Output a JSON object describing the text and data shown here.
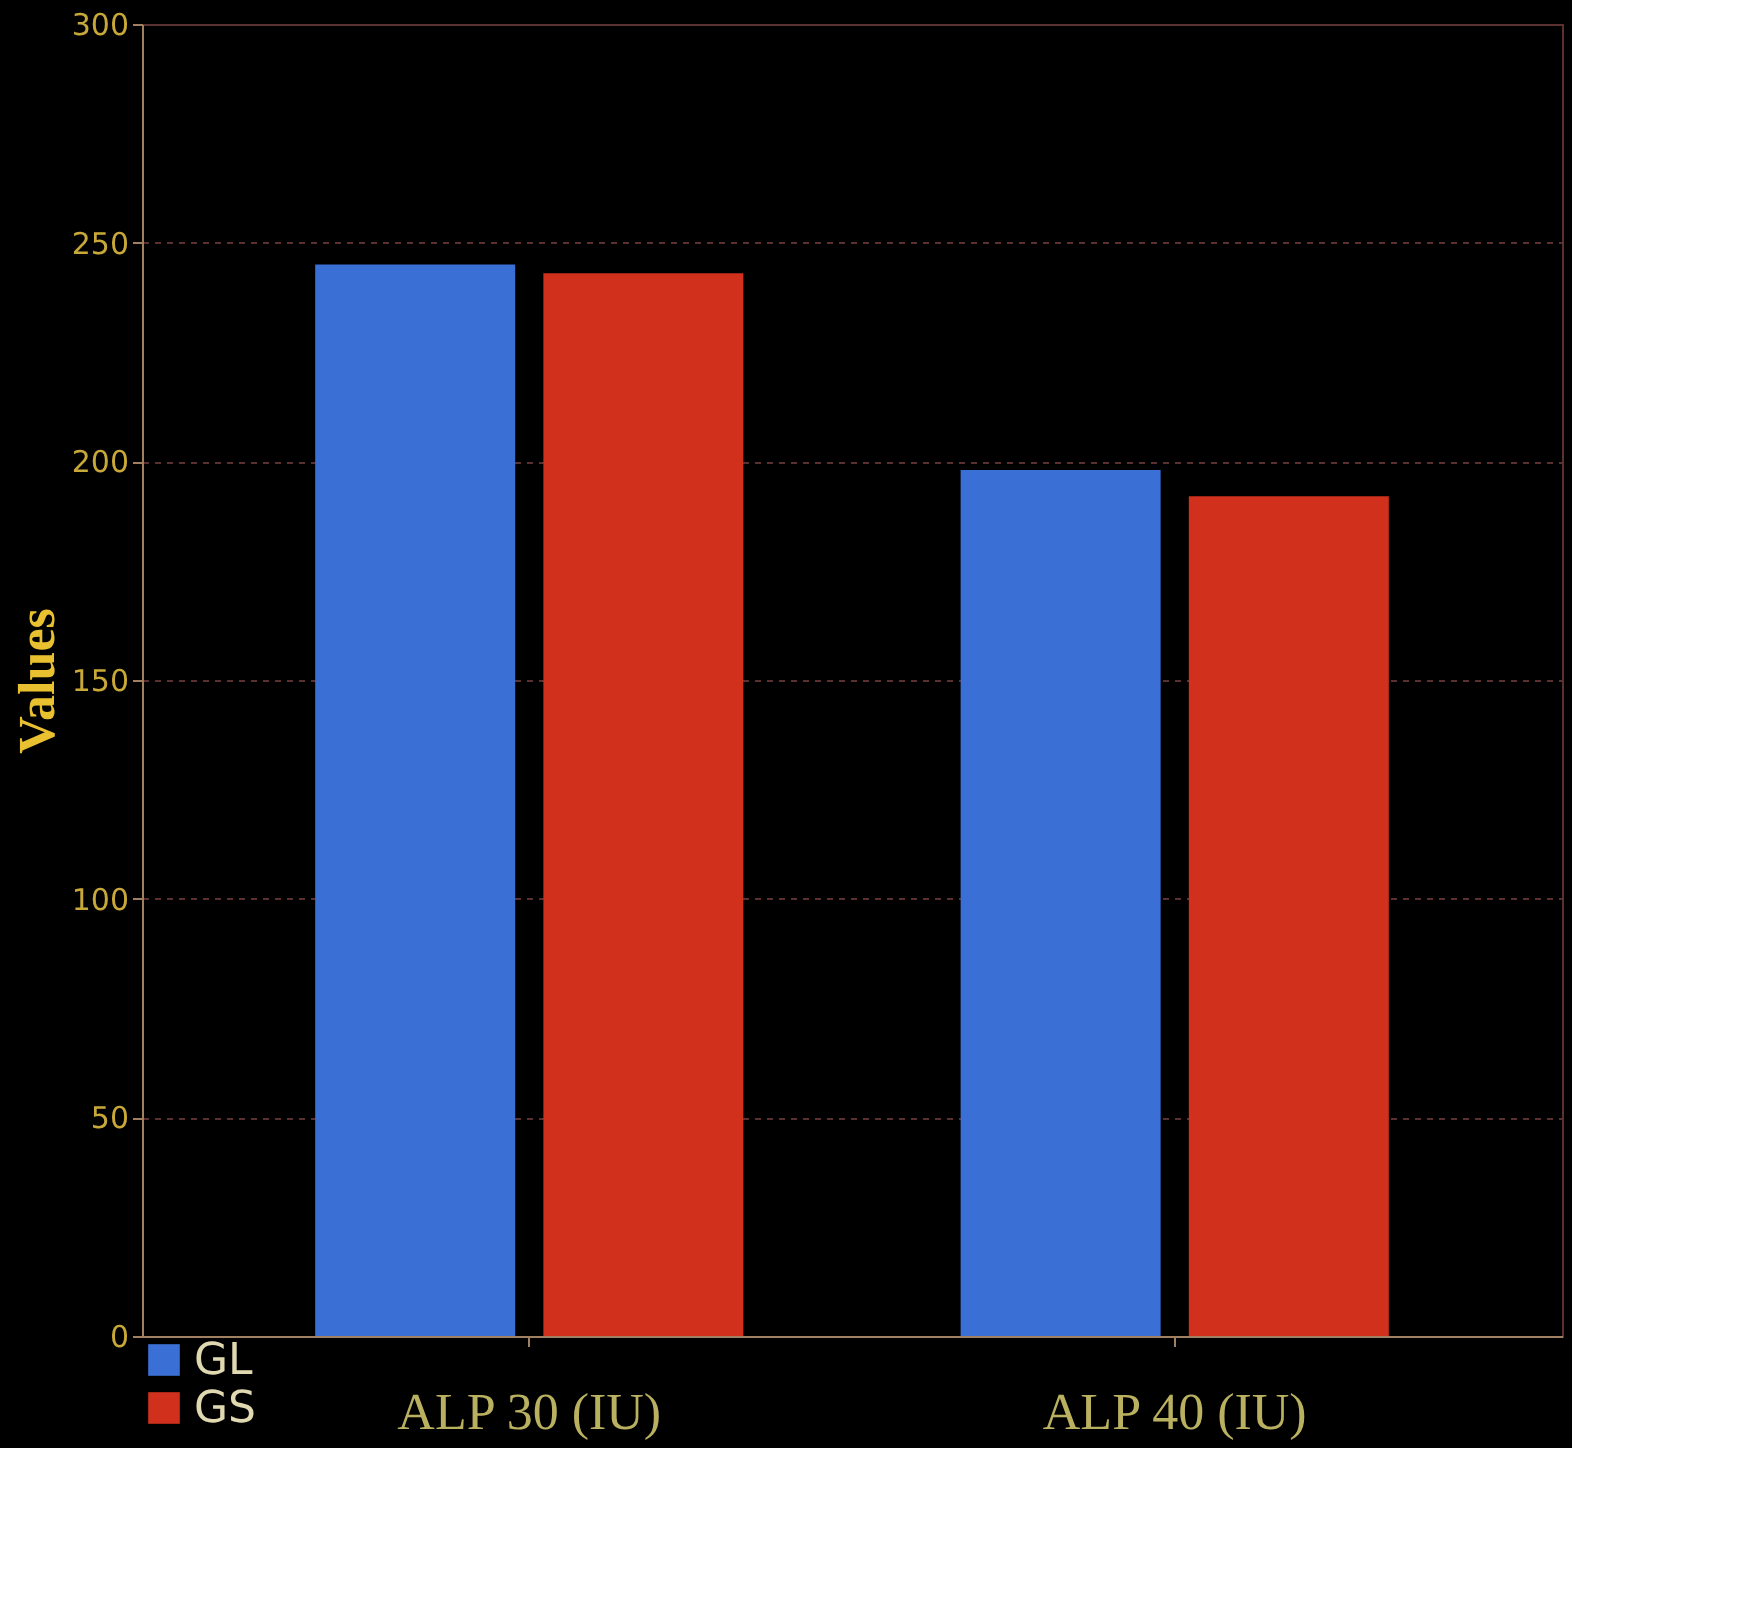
{
  "chart_data": {
    "type": "bar",
    "ylabel": "Values",
    "categories": [
      "ALP 30 (IU)",
      "ALP 40 (IU)"
    ],
    "series": [
      {
        "name": "GL",
        "color": "#3a6fd6",
        "values": [
          245,
          198
        ]
      },
      {
        "name": "GS",
        "color": "#d0301c",
        "values": [
          243,
          192
        ]
      }
    ],
    "ylim": [
      0,
      300
    ],
    "yticks": [
      0,
      50,
      100,
      150,
      200,
      250,
      300
    ],
    "grid": "y",
    "legend": "bottom"
  }
}
